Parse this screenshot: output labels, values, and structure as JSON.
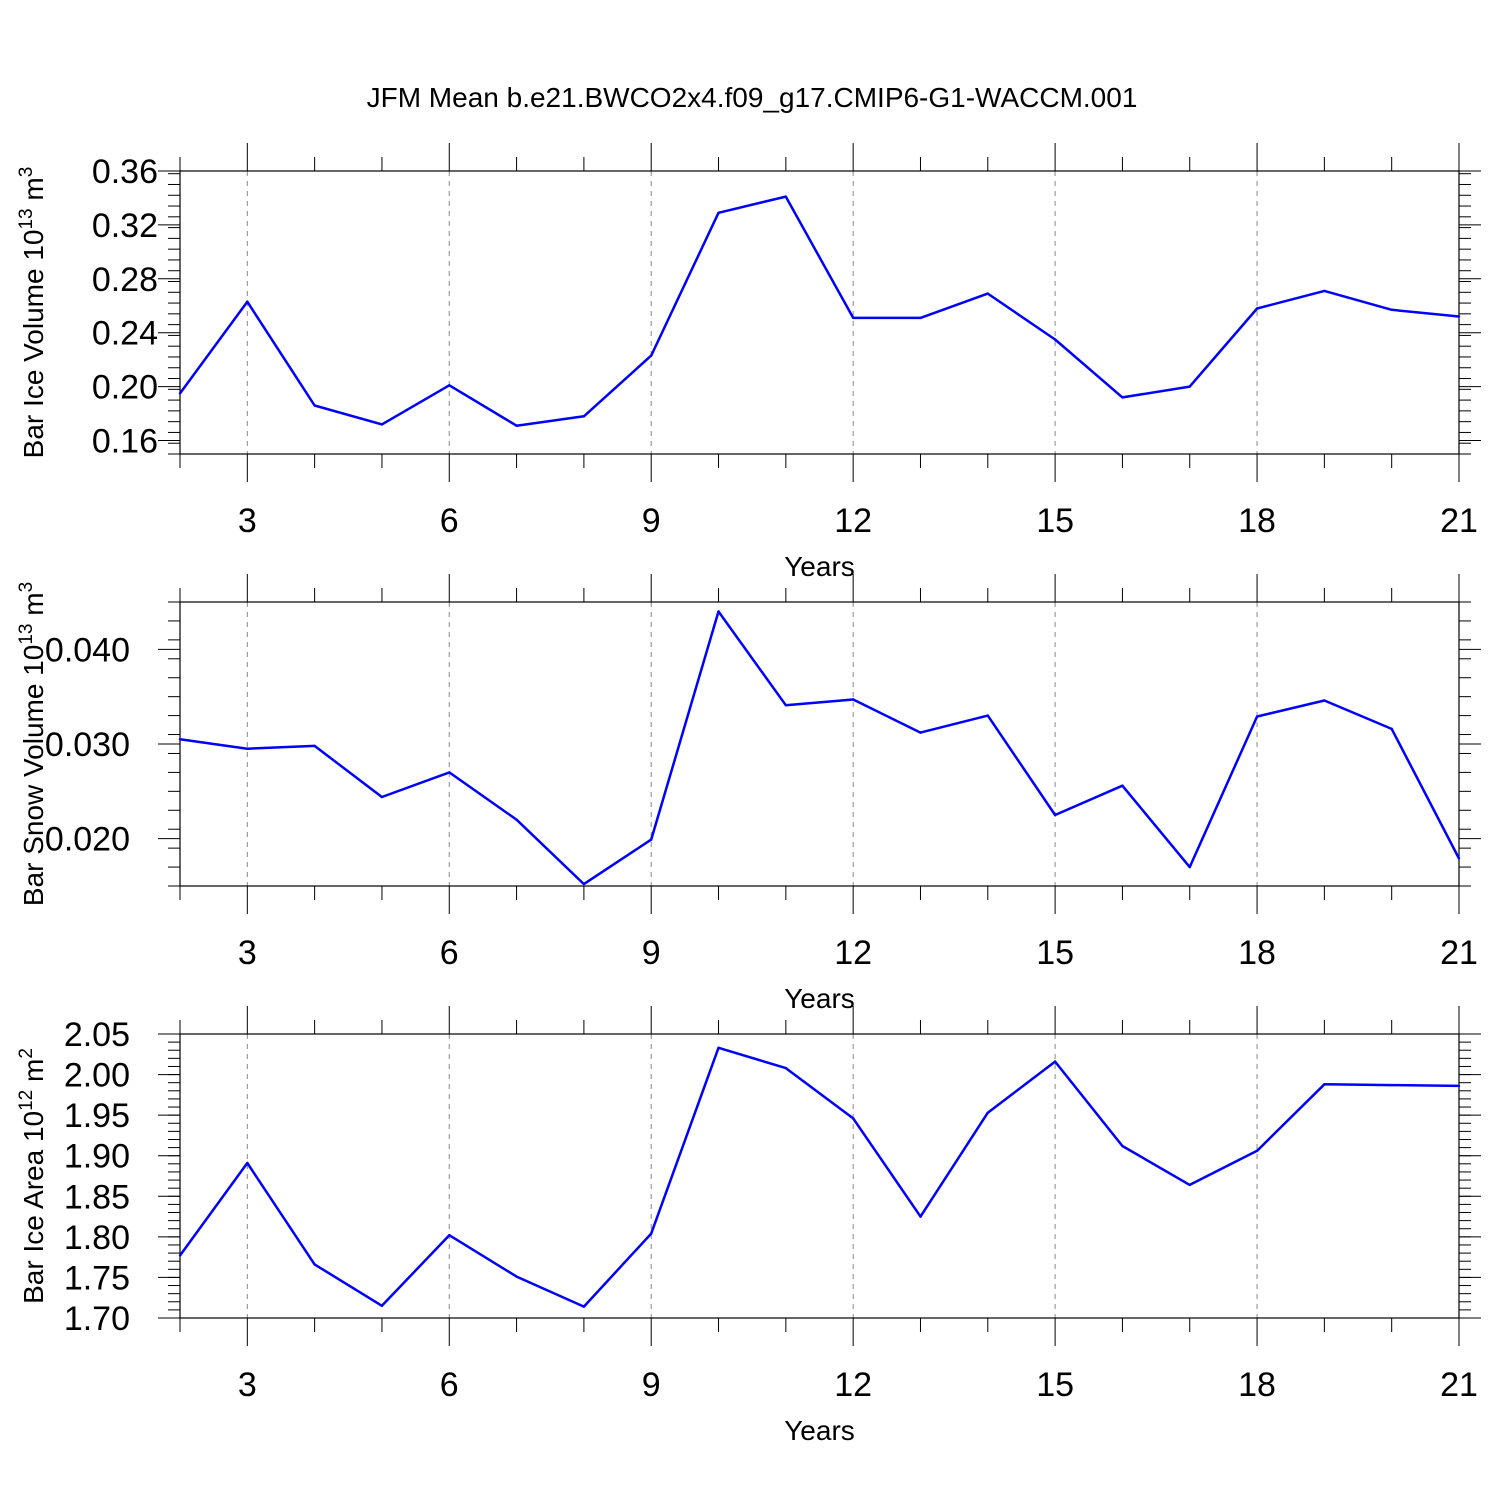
{
  "title": "JFM Mean b.e21.BWCO2x4.f09_g17.CMIP6-G1-WACCM.001",
  "chart_data": [
    {
      "type": "line",
      "ylabel_main": "Bar Ice Volume 10",
      "ylabel_exp1": "13",
      "ylabel_unit": " m",
      "ylabel_exp2": "3",
      "xlabel": "Years",
      "xlim": [
        2,
        21
      ],
      "ylim": [
        0.15,
        0.36
      ],
      "x_ticks": [
        3,
        6,
        9,
        12,
        15,
        18,
        21
      ],
      "y_ticks": [
        0.16,
        0.2,
        0.24,
        0.28,
        0.32,
        0.36
      ],
      "y_tick_labels": [
        "0.16",
        "0.20",
        "0.24",
        "0.28",
        "0.32",
        "0.36"
      ],
      "y_minor_step": 0.008,
      "grid": "vertical dashed at major x ticks",
      "color": "#0000ff",
      "x": [
        2,
        3,
        4,
        5,
        6,
        7,
        8,
        9,
        10,
        11,
        12,
        13,
        14,
        15,
        16,
        17,
        18,
        19,
        20,
        21
      ],
      "values": [
        0.195,
        0.263,
        0.186,
        0.172,
        0.201,
        0.171,
        0.178,
        0.223,
        0.329,
        0.341,
        0.251,
        0.251,
        0.269,
        0.235,
        0.192,
        0.2,
        0.258,
        0.271,
        0.257,
        0.252
      ]
    },
    {
      "type": "line",
      "ylabel_main": "Bar Snow Volume 10",
      "ylabel_exp1": "13",
      "ylabel_unit": " m",
      "ylabel_exp2": "3",
      "xlabel": "Years",
      "xlim": [
        2,
        21
      ],
      "ylim": [
        0.015,
        0.045
      ],
      "x_ticks": [
        3,
        6,
        9,
        12,
        15,
        18,
        21
      ],
      "y_ticks": [
        0.02,
        0.03,
        0.04
      ],
      "y_tick_labels": [
        "0.020",
        "0.030",
        "0.040"
      ],
      "y_minor_step": 0.002,
      "grid": "vertical dashed at major x ticks",
      "color": "#0000ff",
      "x": [
        2,
        3,
        4,
        5,
        6,
        7,
        8,
        9,
        10,
        11,
        12,
        13,
        14,
        15,
        16,
        17,
        18,
        19,
        20,
        21
      ],
      "values": [
        0.0305,
        0.0295,
        0.0298,
        0.0244,
        0.027,
        0.022,
        0.0152,
        0.0199,
        0.044,
        0.0341,
        0.0347,
        0.0312,
        0.033,
        0.0225,
        0.0256,
        0.017,
        0.0329,
        0.0346,
        0.0316,
        0.0179
      ]
    },
    {
      "type": "line",
      "ylabel_main": "Bar Ice Area 10",
      "ylabel_exp1": "12",
      "ylabel_unit": " m",
      "ylabel_exp2": "2",
      "xlabel": "Years",
      "xlim": [
        2,
        21
      ],
      "ylim": [
        1.7,
        2.05
      ],
      "x_ticks": [
        3,
        6,
        9,
        12,
        15,
        18,
        21
      ],
      "y_ticks": [
        1.7,
        1.75,
        1.8,
        1.85,
        1.9,
        1.95,
        2.0,
        2.05
      ],
      "y_tick_labels": [
        "1.70",
        "1.75",
        "1.80",
        "1.85",
        "1.90",
        "1.95",
        "2.00",
        "2.05"
      ],
      "y_minor_step": 0.01,
      "grid": "vertical dashed at major x ticks",
      "color": "#0000ff",
      "x": [
        2,
        3,
        4,
        5,
        6,
        7,
        8,
        9,
        10,
        11,
        12,
        13,
        14,
        15,
        16,
        17,
        18,
        19,
        20,
        21
      ],
      "values": [
        1.777,
        1.891,
        1.766,
        1.715,
        1.802,
        1.751,
        1.714,
        1.804,
        2.033,
        2.008,
        1.946,
        1.825,
        1.953,
        2.016,
        1.912,
        1.864,
        1.906,
        1.988,
        1.987,
        1.986
      ]
    }
  ]
}
